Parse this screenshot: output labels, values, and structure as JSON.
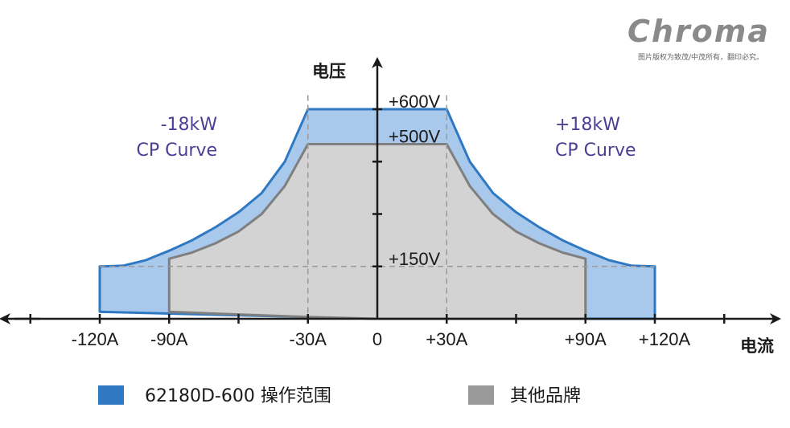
{
  "chart_data": {
    "type": "area",
    "xlabel": "电流",
    "ylabel": "电压",
    "x_ticks": [
      "-120A",
      "-90A",
      "-30A",
      "0",
      "+30A",
      "+90A",
      "+120A"
    ],
    "x_tick_values": [
      -120,
      -90,
      -30,
      0,
      30,
      90,
      120
    ],
    "y_ticks": [
      "+150V",
      "+500V",
      "+600V"
    ],
    "y_tick_values": [
      150,
      500,
      600
    ],
    "xlim": [
      -165,
      165
    ],
    "ylim": [
      0,
      720
    ],
    "grid": false,
    "reference_lines": {
      "x": [
        -30,
        30
      ],
      "y": [
        150
      ]
    },
    "series": [
      {
        "name": "62180D-600 操作范围",
        "color": "#a8c8ec",
        "stroke": "#2f78c2",
        "points": [
          [
            -120,
            20
          ],
          [
            -120,
            150
          ],
          [
            -110,
            152
          ],
          [
            -100,
            168
          ],
          [
            -90,
            195
          ],
          [
            -80,
            225
          ],
          [
            -70,
            262
          ],
          [
            -60,
            305
          ],
          [
            -50,
            360
          ],
          [
            -40,
            450
          ],
          [
            -30,
            600
          ],
          [
            30,
            600
          ],
          [
            40,
            450
          ],
          [
            50,
            360
          ],
          [
            60,
            305
          ],
          [
            70,
            262
          ],
          [
            80,
            225
          ],
          [
            90,
            195
          ],
          [
            100,
            168
          ],
          [
            110,
            152
          ],
          [
            120,
            150
          ],
          [
            120,
            0
          ],
          [
            0,
            0
          ]
        ]
      },
      {
        "name": "其他品牌",
        "color": "#d3d3d3",
        "stroke": "#7f7f7f",
        "points": [
          [
            -90,
            20
          ],
          [
            -90,
            172
          ],
          [
            -80,
            190
          ],
          [
            -70,
            216
          ],
          [
            -60,
            250
          ],
          [
            -50,
            300
          ],
          [
            -40,
            380
          ],
          [
            -30,
            500
          ],
          [
            30,
            500
          ],
          [
            40,
            380
          ],
          [
            50,
            300
          ],
          [
            60,
            250
          ],
          [
            70,
            216
          ],
          [
            80,
            190
          ],
          [
            90,
            172
          ],
          [
            90,
            0
          ],
          [
            0,
            0
          ],
          [
            -30,
            5
          ]
        ]
      }
    ],
    "annotations": [
      {
        "lines": [
          "-18kW",
          "CP Curve"
        ],
        "side": "left"
      },
      {
        "lines": [
          "+18kW",
          "CP Curve"
        ],
        "side": "right"
      }
    ]
  },
  "legend": {
    "items": [
      {
        "label": "62180D-600 操作范围",
        "color": "#2f78c2"
      },
      {
        "label": "其他品牌",
        "color": "#999999"
      }
    ]
  },
  "logo": {
    "text": "Chroma",
    "subtitle": "图片版权为致茂/中茂所有，翻印必究。"
  }
}
